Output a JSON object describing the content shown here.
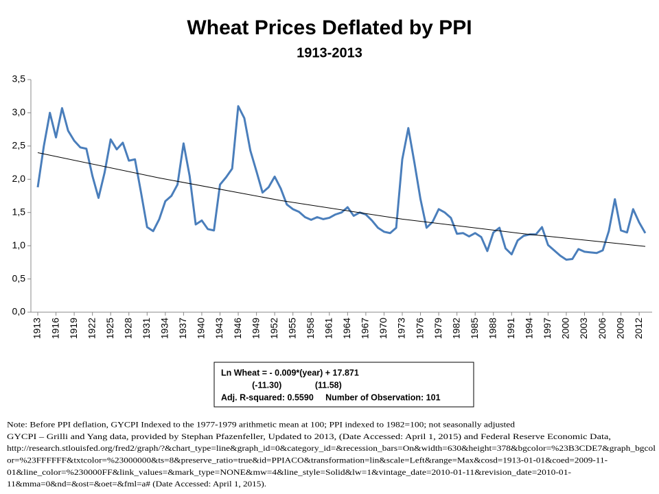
{
  "chart_data": {
    "type": "line",
    "title": "Wheat Prices Deflated by PPI",
    "subtitle": "1913-2013",
    "x": [
      1913,
      1914,
      1915,
      1916,
      1917,
      1918,
      1919,
      1920,
      1921,
      1922,
      1923,
      1924,
      1925,
      1926,
      1927,
      1928,
      1929,
      1930,
      1931,
      1932,
      1933,
      1934,
      1935,
      1936,
      1937,
      1938,
      1939,
      1940,
      1941,
      1942,
      1943,
      1944,
      1945,
      1946,
      1947,
      1948,
      1949,
      1950,
      1951,
      1952,
      1953,
      1954,
      1955,
      1956,
      1957,
      1958,
      1959,
      1960,
      1961,
      1962,
      1963,
      1964,
      1965,
      1966,
      1967,
      1968,
      1969,
      1970,
      1971,
      1972,
      1973,
      1974,
      1975,
      1976,
      1977,
      1978,
      1979,
      1980,
      1981,
      1982,
      1983,
      1984,
      1985,
      1986,
      1987,
      1988,
      1989,
      1990,
      1991,
      1992,
      1993,
      1994,
      1995,
      1996,
      1997,
      1998,
      1999,
      2000,
      2001,
      2002,
      2003,
      2004,
      2005,
      2006,
      2007,
      2008,
      2009,
      2010,
      2011,
      2012,
      2013
    ],
    "series": [
      {
        "color": "#4a7ebb",
        "values": [
          1.88,
          2.5,
          3.0,
          2.63,
          3.07,
          2.73,
          2.58,
          2.48,
          2.46,
          2.05,
          1.72,
          2.1,
          2.6,
          2.45,
          2.55,
          2.28,
          2.3,
          1.8,
          1.28,
          1.22,
          1.4,
          1.67,
          1.75,
          1.92,
          2.54,
          2.05,
          1.32,
          1.38,
          1.25,
          1.23,
          1.92,
          2.03,
          2.16,
          3.1,
          2.92,
          2.43,
          2.12,
          1.8,
          1.88,
          2.04,
          1.86,
          1.62,
          1.55,
          1.51,
          1.43,
          1.39,
          1.43,
          1.4,
          1.42,
          1.47,
          1.5,
          1.58,
          1.45,
          1.5,
          1.47,
          1.38,
          1.27,
          1.21,
          1.19,
          1.27,
          2.3,
          2.77,
          2.25,
          1.7,
          1.27,
          1.36,
          1.55,
          1.5,
          1.42,
          1.18,
          1.19,
          1.14,
          1.19,
          1.13,
          0.92,
          1.2,
          1.27,
          0.96,
          0.87,
          1.08,
          1.15,
          1.17,
          1.17,
          1.28,
          1.01,
          0.93,
          0.85,
          0.79,
          0.8,
          0.95,
          0.91,
          0.9,
          0.89,
          0.93,
          1.22,
          1.7,
          1.23,
          1.2,
          1.55,
          1.35,
          1.19
        ]
      },
      {
        "color": "#000000",
        "x": [
          1913,
          1933,
          1953,
          1973,
          1993,
          2013
        ],
        "values": [
          2.4,
          2.02,
          1.68,
          1.4,
          1.18,
          0.99
        ]
      }
    ],
    "xlim": [
      1913,
      2013
    ],
    "xticks": [
      1913,
      1916,
      1919,
      1922,
      1925,
      1928,
      1931,
      1934,
      1937,
      1940,
      1943,
      1946,
      1949,
      1952,
      1955,
      1958,
      1961,
      1964,
      1967,
      1970,
      1973,
      1976,
      1979,
      1982,
      1985,
      1988,
      1991,
      1994,
      1997,
      2000,
      2003,
      2006,
      2009,
      2012
    ],
    "ylim": [
      0,
      3.5
    ],
    "yticks": [
      {
        "value": 0,
        "label": "0,0"
      },
      {
        "value": 0.5,
        "label": "0,5"
      },
      {
        "value": 1,
        "label": "1,0"
      },
      {
        "value": 1.5,
        "label": "1,5"
      },
      {
        "value": 2,
        "label": "2,0"
      },
      {
        "value": 2.5,
        "label": "2,5"
      },
      {
        "value": 3,
        "label": "3,0"
      },
      {
        "value": 3.5,
        "label": "3,5"
      }
    ],
    "annotation": [
      "Ln Wheat = - 0.009*(year) + 17.871",
      "             (-11.30)              (11.58)",
      "Adj. R-squared: 0.5590     Number of Observation: 101"
    ],
    "note": [
      "Note: Before PPI deflation, GYCPI Indexed to the 1977-1979 arithmetic mean at 100; PPI indexed to 1982=100; not seasonally adjusted",
      "GYCPI – Grilli  and Yang data, provided by Stephan Pfazenfeller, Updated to 2013, (Date Accessed: April  1, 2015) and Federal Reserve Economic Data,",
      "http://research.stlouisfed.org/fred2/graph/?&chart_type=line&graph_id=0&category_id=&recession_bars=On&width=630&height=378&bgcolor=%23B3CDE7&graph_bgcol",
      "or=%23FFFFFF&txtcolor=%23000000&ts=8&preserve_ratio=true&id=PPIACO&transformation=lin&scale=Left&range=Max&cosd=1913-01-01&coed=2009-11-",
      "01&line_color=%230000FF&link_values=&mark_type=NONE&mw=4&line_style=Solid&lw=1&vintage_date=2010-01-11&revision_date=2010-01-",
      "11&mma=0&nd=&ost=&oet=&fml=a# (Date Accessed: April  1, 2015)."
    ]
  }
}
